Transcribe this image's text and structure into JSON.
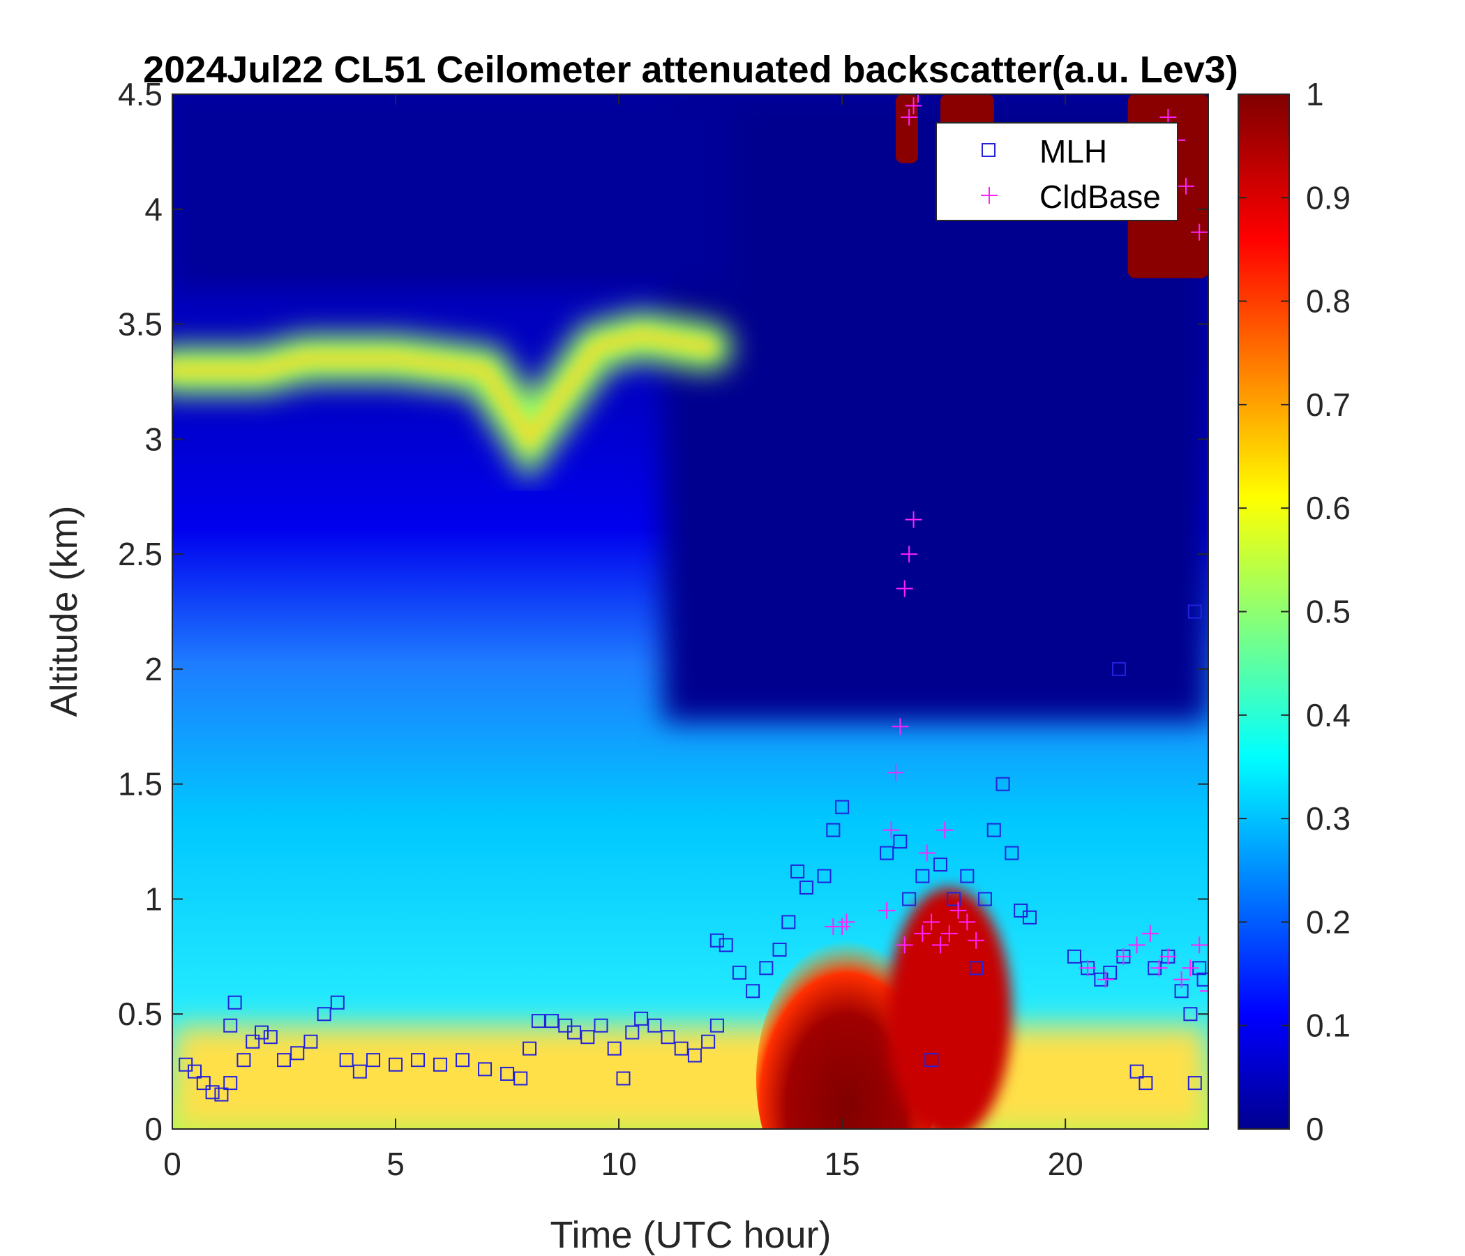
{
  "chart_data": {
    "type": "heatmap",
    "title": "2024Jul22 CL51 Ceilometer attenuated backscatter(a.u. Lev3)",
    "xlabel": "Time (UTC hour)",
    "ylabel": "Altitude (km)",
    "xlim": [
      0,
      23.2
    ],
    "ylim": [
      0,
      4.5
    ],
    "xticks": [
      "0",
      "5",
      "10",
      "15",
      "20"
    ],
    "yticks": [
      "0",
      "0.5",
      "1",
      "1.5",
      "2",
      "2.5",
      "3",
      "3.5",
      "4",
      "4.5"
    ],
    "colorbar": {
      "range": [
        0,
        1
      ],
      "ticks": [
        "0",
        "0.1",
        "0.2",
        "0.3",
        "0.4",
        "0.5",
        "0.6",
        "0.7",
        "0.8",
        "0.9",
        "1"
      ],
      "colormap": "jet"
    },
    "layers": {
      "elevated_aerosol_layer": {
        "altitude_km": [
          [
            0,
            3.3
          ],
          [
            2,
            3.3
          ],
          [
            3,
            3.35
          ],
          [
            5,
            3.35
          ],
          [
            7,
            3.3
          ],
          [
            8,
            3.0
          ],
          [
            9.5,
            3.4
          ],
          [
            10.5,
            3.45
          ],
          [
            12,
            3.4
          ]
        ],
        "value": 0.55
      },
      "strong_low_backscatter_core": {
        "x_range": [
          13.7,
          16.5
        ],
        "altitude_km": [
          0,
          0.55
        ],
        "value": 1.0
      },
      "upper_cloud_returns": [
        {
          "x_range": [
            16.2,
            16.7
          ],
          "altitude_km": [
            4.2,
            4.5
          ],
          "value": 1.0
        },
        {
          "x_range": [
            17.2,
            18.4
          ],
          "altitude_km": [
            4.3,
            4.5
          ],
          "value": 1.0
        },
        {
          "x_range": [
            21.4,
            23.2
          ],
          "altitude_km": [
            3.7,
            4.5
          ],
          "value": 1.0
        }
      ]
    },
    "series": [
      {
        "name": "MLH",
        "marker": "square",
        "color": "#2222dd",
        "points": [
          [
            0.3,
            0.28
          ],
          [
            0.5,
            0.25
          ],
          [
            0.7,
            0.2
          ],
          [
            0.9,
            0.16
          ],
          [
            1.1,
            0.15
          ],
          [
            1.3,
            0.2
          ],
          [
            1.3,
            0.45
          ],
          [
            1.4,
            0.55
          ],
          [
            1.6,
            0.3
          ],
          [
            1.8,
            0.38
          ],
          [
            2.0,
            0.42
          ],
          [
            2.2,
            0.4
          ],
          [
            2.5,
            0.3
          ],
          [
            2.8,
            0.33
          ],
          [
            3.1,
            0.38
          ],
          [
            3.4,
            0.5
          ],
          [
            3.7,
            0.55
          ],
          [
            3.9,
            0.3
          ],
          [
            4.2,
            0.25
          ],
          [
            4.5,
            0.3
          ],
          [
            5.0,
            0.28
          ],
          [
            5.5,
            0.3
          ],
          [
            6.0,
            0.28
          ],
          [
            6.5,
            0.3
          ],
          [
            7.0,
            0.26
          ],
          [
            7.5,
            0.24
          ],
          [
            7.8,
            0.22
          ],
          [
            8.0,
            0.35
          ],
          [
            8.2,
            0.47
          ],
          [
            8.5,
            0.47
          ],
          [
            8.8,
            0.45
          ],
          [
            9.0,
            0.42
          ],
          [
            9.3,
            0.4
          ],
          [
            9.6,
            0.45
          ],
          [
            9.9,
            0.35
          ],
          [
            10.1,
            0.22
          ],
          [
            10.3,
            0.42
          ],
          [
            10.5,
            0.48
          ],
          [
            10.8,
            0.45
          ],
          [
            11.1,
            0.4
          ],
          [
            11.4,
            0.35
          ],
          [
            11.7,
            0.32
          ],
          [
            12.0,
            0.38
          ],
          [
            12.2,
            0.45
          ],
          [
            12.2,
            0.82
          ],
          [
            12.4,
            0.8
          ],
          [
            12.7,
            0.68
          ],
          [
            13.0,
            0.6
          ],
          [
            13.3,
            0.7
          ],
          [
            13.6,
            0.78
          ],
          [
            13.8,
            0.9
          ],
          [
            14.0,
            1.12
          ],
          [
            14.2,
            1.05
          ],
          [
            14.6,
            1.1
          ],
          [
            14.8,
            1.3
          ],
          [
            15.0,
            1.4
          ],
          [
            16.0,
            1.2
          ],
          [
            16.3,
            1.25
          ],
          [
            16.5,
            1.0
          ],
          [
            16.8,
            1.1
          ],
          [
            17.0,
            0.3
          ],
          [
            17.2,
            1.15
          ],
          [
            17.5,
            1.0
          ],
          [
            17.8,
            1.1
          ],
          [
            18.0,
            0.7
          ],
          [
            18.2,
            1.0
          ],
          [
            18.4,
            1.3
          ],
          [
            18.6,
            1.5
          ],
          [
            18.8,
            1.2
          ],
          [
            19.0,
            0.95
          ],
          [
            19.2,
            0.92
          ],
          [
            20.2,
            0.75
          ],
          [
            20.5,
            0.7
          ],
          [
            20.8,
            0.65
          ],
          [
            21.0,
            0.68
          ],
          [
            21.3,
            0.75
          ],
          [
            21.6,
            0.25
          ],
          [
            21.8,
            0.2
          ],
          [
            22.0,
            0.7
          ],
          [
            22.3,
            0.75
          ],
          [
            22.6,
            0.6
          ],
          [
            22.8,
            0.5
          ],
          [
            22.9,
            0.2
          ],
          [
            23.0,
            0.7
          ],
          [
            23.1,
            0.65
          ],
          [
            21.2,
            2.0
          ],
          [
            22.9,
            2.25
          ]
        ]
      },
      {
        "name": "CldBase",
        "marker": "plus",
        "color": "#ff22ff",
        "points": [
          [
            14.8,
            0.88
          ],
          [
            15.0,
            0.88
          ],
          [
            15.1,
            0.9
          ],
          [
            16.0,
            0.95
          ],
          [
            16.1,
            1.3
          ],
          [
            16.2,
            1.55
          ],
          [
            16.3,
            1.75
          ],
          [
            16.4,
            2.35
          ],
          [
            16.5,
            2.5
          ],
          [
            16.6,
            2.65
          ],
          [
            16.5,
            4.4
          ],
          [
            16.6,
            4.45
          ],
          [
            16.7,
            4.5
          ],
          [
            16.4,
            0.8
          ],
          [
            16.8,
            0.85
          ],
          [
            17.0,
            0.9
          ],
          [
            17.2,
            0.8
          ],
          [
            17.4,
            0.85
          ],
          [
            17.6,
            0.95
          ],
          [
            17.8,
            0.9
          ],
          [
            18.0,
            0.82
          ],
          [
            17.3,
            1.3
          ],
          [
            16.9,
            1.2
          ],
          [
            20.5,
            0.7
          ],
          [
            20.9,
            0.65
          ],
          [
            21.3,
            0.75
          ],
          [
            21.6,
            0.8
          ],
          [
            21.9,
            0.85
          ],
          [
            22.1,
            0.7
          ],
          [
            22.3,
            0.75
          ],
          [
            22.6,
            0.65
          ],
          [
            22.8,
            0.7
          ],
          [
            23.0,
            0.8
          ],
          [
            23.2,
            0.6
          ],
          [
            22.3,
            4.4
          ],
          [
            22.5,
            4.3
          ],
          [
            22.7,
            4.1
          ],
          [
            23.0,
            3.9
          ]
        ]
      }
    ],
    "legend": {
      "position": "top-right",
      "entries": [
        "MLH",
        "CldBase"
      ]
    }
  }
}
